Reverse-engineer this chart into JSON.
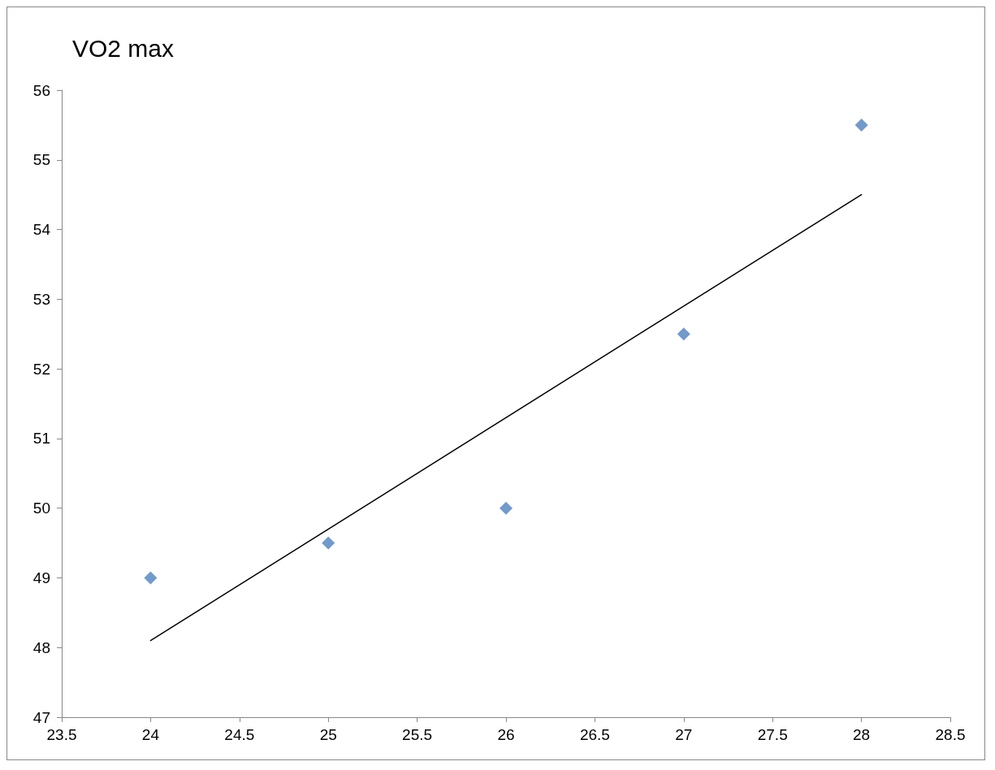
{
  "chart_data": {
    "type": "scatter",
    "title": "VO2 max",
    "series": [
      {
        "color": "#4f81bd",
        "x": [
          24,
          25,
          26,
          27,
          28
        ],
        "values": [
          49,
          49.5,
          50,
          52.5,
          55.5
        ]
      },
      {
        "type": "line",
        "color": "#000000",
        "marker": "none",
        "x": [
          24,
          28
        ],
        "values": [
          48.1,
          54.5
        ]
      }
    ],
    "xlim": [
      23.5,
      28.5
    ],
    "xticks": [
      23.5,
      24,
      24.5,
      25,
      25.5,
      26,
      26.5,
      27,
      27.5,
      28,
      28.5
    ],
    "ylim": [
      47,
      56
    ],
    "yticks": [
      47,
      48,
      49,
      50,
      51,
      52,
      53,
      54,
      55,
      56
    ],
    "grid": false,
    "marker": "diamond",
    "line_style": "solid"
  }
}
